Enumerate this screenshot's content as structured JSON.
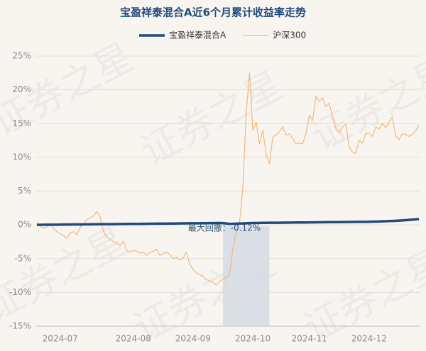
{
  "chart_data": {
    "type": "line",
    "title": "宝盈祥泰混合A近6个月累计收益率走势",
    "watermark": "证券之星",
    "legend": "top",
    "grid": true,
    "categories": [
      null,
      null,
      null,
      null,
      null,
      null,
      null,
      "2024-07",
      null,
      null,
      null,
      null,
      null,
      null,
      null,
      null,
      null,
      null,
      null,
      null,
      null,
      null,
      null,
      null,
      null,
      null,
      null,
      null,
      null,
      "2024-08",
      null,
      null,
      null,
      null,
      null,
      null,
      null,
      null,
      null,
      null,
      null,
      null,
      null,
      null,
      null,
      null,
      null,
      "2024-09",
      null,
      null,
      null,
      null,
      null,
      null,
      null,
      null,
      null,
      null,
      null,
      null,
      null,
      null,
      null,
      null,
      null,
      "2024-10",
      null,
      null,
      null,
      null,
      null,
      null,
      null,
      null,
      null,
      null,
      null,
      null,
      null,
      null,
      null,
      null,
      "2024-11",
      null,
      null,
      null,
      null,
      null,
      null,
      null,
      null,
      null,
      null,
      null,
      null,
      null,
      null,
      null,
      null,
      null,
      "2024-12",
      null,
      null,
      null,
      null,
      null,
      null,
      null,
      null,
      null,
      null,
      null,
      null,
      null,
      null,
      null
    ],
    "series": [
      {
        "name": "宝盈祥泰混合A",
        "color": "#1f4a7c",
        "width": 3.5,
        "values": [
          0,
          0.01,
          0.01,
          0.02,
          0.02,
          0.03,
          0.03,
          0.04,
          0.04,
          0.05,
          0.05,
          0.06,
          0.06,
          0.07,
          0.07,
          0.08,
          0.08,
          0.09,
          0.09,
          0.1,
          0.1,
          0.1,
          0.11,
          0.11,
          0.12,
          0.12,
          0.13,
          0.13,
          0.14,
          0.14,
          0.15,
          0.15,
          0.16,
          0.16,
          0.17,
          0.17,
          0.18,
          0.18,
          0.19,
          0.19,
          0.2,
          0.2,
          0.21,
          0.21,
          0.22,
          0.22,
          0.23,
          0.23,
          0.24,
          0.24,
          0.25,
          0.25,
          0.26,
          0.26,
          0.27,
          0.27,
          0.26,
          0.2,
          0.15,
          0.16,
          0.18,
          0.2,
          0.22,
          0.24,
          0.26,
          0.27,
          0.28,
          0.29,
          0.3,
          0.3,
          0.31,
          0.31,
          0.32,
          0.32,
          0.33,
          0.33,
          0.34,
          0.34,
          0.35,
          0.35,
          0.36,
          0.36,
          0.37,
          0.37,
          0.38,
          0.38,
          0.39,
          0.39,
          0.4,
          0.4,
          0.41,
          0.41,
          0.42,
          0.42,
          0.43,
          0.43,
          0.44,
          0.44,
          0.45,
          0.45,
          0.46,
          0.47,
          0.48,
          0.5,
          0.52,
          0.54,
          0.56,
          0.58,
          0.6,
          0.63,
          0.66,
          0.7,
          0.74,
          0.78,
          0.82,
          0.86
        ]
      },
      {
        "name": "沪深300",
        "color": "#f4b77c",
        "width": 1.2,
        "values": [
          0.3,
          -0.2,
          -0.5,
          -0.3,
          0,
          -0.5,
          -1,
          -1.3,
          -1.6,
          -2,
          -1.2,
          -1,
          -1.5,
          -0.4,
          0.2,
          0.8,
          1,
          1.3,
          2,
          1.2,
          -0.9,
          -1.8,
          -2.1,
          -2.5,
          -2.7,
          -3.1,
          -2.4,
          -3.8,
          -4,
          -3.8,
          -3.9,
          -4.2,
          -4,
          -4.5,
          -4.1,
          -3.9,
          -3.6,
          -4.5,
          -4.3,
          -4,
          -4.4,
          -5,
          -4.8,
          -5.2,
          -4.9,
          -4,
          -5.8,
          -6.6,
          -7.1,
          -7.4,
          -7.6,
          -8.1,
          -8.3,
          -8.5,
          -8.9,
          -8.4,
          -8,
          -7.8,
          -7.4,
          -3.5,
          -1,
          0.3,
          5.5,
          16.5,
          22.5,
          14,
          15.2,
          12,
          14,
          10.5,
          9,
          13,
          13.3,
          13.8,
          14.5,
          13.3,
          13.5,
          12.8,
          12,
          12.1,
          12,
          13.5,
          16.2,
          15.5,
          19,
          18.3,
          18.8,
          17.5,
          18,
          16,
          14.2,
          13.6,
          14.5,
          14.9,
          11.5,
          10.8,
          10.6,
          12.5,
          12.1,
          13.5,
          13.6,
          13.1,
          14.5,
          14.2,
          15,
          14.4,
          15.2,
          16,
          13.2,
          12.6,
          13.5,
          13.4,
          13.1,
          13.4,
          13.9,
          14.8
        ]
      }
    ],
    "highlight": {
      "label": "最大回撤：-0.12%",
      "start": 56,
      "end": 70,
      "color": "#d3dbe3"
    },
    "ylim": [
      -15,
      25
    ],
    "yticks": [
      {
        "value": -15,
        "label": "-15%"
      },
      {
        "value": -10,
        "label": "-10%"
      },
      {
        "value": -5,
        "label": "-5%"
      },
      {
        "value": 0,
        "label": "0%"
      },
      {
        "value": 5,
        "label": "5%"
      },
      {
        "value": 10,
        "label": "10%"
      },
      {
        "value": 15,
        "label": "15%"
      },
      {
        "value": 20,
        "label": "20%"
      },
      {
        "value": 25,
        "label": "25%"
      }
    ]
  }
}
